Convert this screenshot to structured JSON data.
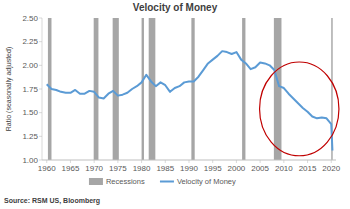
{
  "chart_data": {
    "type": "line",
    "title": "Velocity of Money",
    "y_label": "Ratio (seasonally adjusted)",
    "source": "Source: RSM US, Bloomberg",
    "x": [
      1960,
      1961,
      1962,
      1963,
      1964,
      1965,
      1966,
      1967,
      1968,
      1969,
      1970,
      1971,
      1972,
      1973,
      1974,
      1975,
      1976,
      1977,
      1978,
      1979,
      1980,
      1981,
      1982,
      1983,
      1984,
      1985,
      1986,
      1987,
      1988,
      1989,
      1990,
      1991,
      1992,
      1993,
      1994,
      1995,
      1996,
      1997,
      1998,
      1999,
      2000,
      2001,
      2002,
      2003,
      2004,
      2005,
      2006,
      2007,
      2008,
      2009,
      2010,
      2011,
      2012,
      2013,
      2014,
      2015,
      2016,
      2017,
      2018,
      2019,
      2020,
      2020.25
    ],
    "series": [
      {
        "name": "Recessions",
        "type": "span",
        "color": "#a6a6a6",
        "spans": [
          [
            1960.25,
            1961.0
          ],
          [
            1969.9,
            1970.9
          ],
          [
            1973.9,
            1975.2
          ],
          [
            1980.0,
            1980.5
          ],
          [
            1981.5,
            1982.9
          ],
          [
            1990.5,
            1991.2
          ],
          [
            2001.2,
            2001.9
          ],
          [
            2007.9,
            2009.5
          ],
          [
            2020.0,
            2020.3
          ]
        ]
      },
      {
        "name": "Velocity of Money",
        "type": "line",
        "color": "#5b9bd5",
        "values": [
          1.8,
          1.75,
          1.74,
          1.72,
          1.71,
          1.71,
          1.74,
          1.7,
          1.7,
          1.73,
          1.72,
          1.66,
          1.65,
          1.7,
          1.73,
          1.68,
          1.69,
          1.71,
          1.75,
          1.78,
          1.82,
          1.9,
          1.83,
          1.78,
          1.82,
          1.79,
          1.72,
          1.76,
          1.78,
          1.82,
          1.83,
          1.83,
          1.88,
          1.95,
          2.02,
          2.06,
          2.1,
          2.15,
          2.14,
          2.12,
          2.14,
          2.06,
          2.02,
          1.96,
          1.98,
          2.03,
          2.02,
          2.0,
          1.95,
          1.78,
          1.76,
          1.7,
          1.65,
          1.6,
          1.55,
          1.51,
          1.46,
          1.44,
          1.45,
          1.44,
          1.38,
          1.1
        ]
      }
    ],
    "xlim": [
      1959,
      2021
    ],
    "xticks": [
      1960,
      1965,
      1970,
      1975,
      1980,
      1985,
      1990,
      1995,
      2000,
      2005,
      2010,
      2015,
      2020
    ],
    "ylim": [
      1,
      2.5
    ],
    "yticks": [
      {
        "value": 1,
        "label": "1.00"
      },
      {
        "value": 1.25,
        "label": "1.25"
      },
      {
        "value": 1.5,
        "label": "1.50"
      },
      {
        "value": 1.75,
        "label": "1.75"
      },
      {
        "value": 2,
        "label": "2.00"
      },
      {
        "value": 2.25,
        "label": "2.25"
      },
      {
        "value": 2.5,
        "label": "2.50"
      }
    ],
    "grid": false,
    "legend": "bottom"
  }
}
